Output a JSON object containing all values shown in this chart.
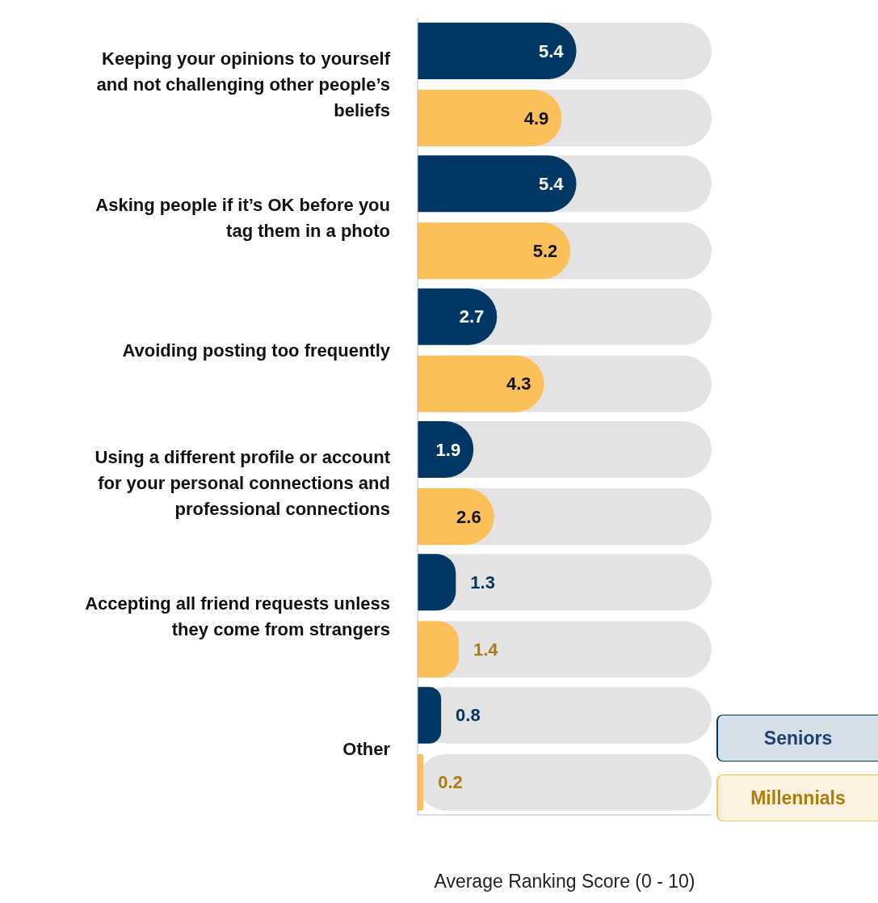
{
  "chart_data": {
    "type": "bar",
    "orientation": "horizontal",
    "xlabel": "Average Ranking Score (0 - 10)",
    "categories": [
      "Keeping your opinions to yourself and not challenging other people’s beliefs",
      "Asking people if it’s OK before you tag them in a photo",
      "Avoiding posting too frequently",
      "Using a different profile or account for your personal connections and professional connections",
      "Accepting all friend requests unless they come from strangers",
      "Other"
    ],
    "series": [
      {
        "name": "Seniors",
        "color": "#003764",
        "values": [
          5.4,
          5.4,
          2.7,
          1.9,
          1.3,
          0.8
        ]
      },
      {
        "name": "Millennials",
        "color": "#fdbf57",
        "values": [
          4.9,
          5.2,
          4.3,
          2.6,
          1.4,
          0.2
        ]
      }
    ],
    "xlim": [
      0,
      10
    ],
    "data_labels": true,
    "legend": "bottom right"
  }
}
